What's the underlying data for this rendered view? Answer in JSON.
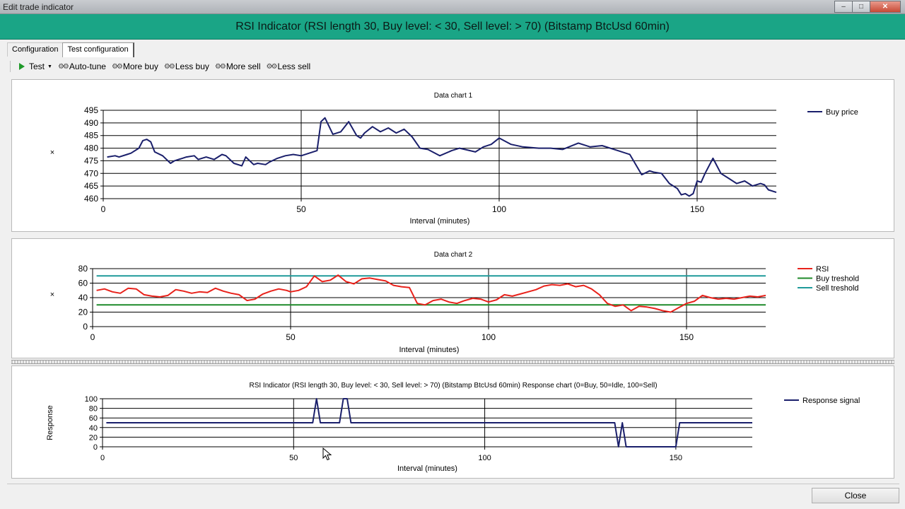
{
  "window": {
    "title": "Edit trade indicator",
    "minimize": "0",
    "maximize": "1",
    "close": "r"
  },
  "header": {
    "title": "RSI Indicator (RSI length 30, Buy level: < 30, Sell level: > 70) (Bitstamp BtcUsd 60min)"
  },
  "tabs": [
    {
      "label": "Configuration"
    },
    {
      "label": "Test configuration"
    }
  ],
  "toolbar": {
    "test": "Test",
    "auto_tune": "Auto-tune",
    "more_buy": "More buy",
    "less_buy": "Less buy",
    "more_sell": "More sell",
    "less_sell": "Less sell",
    "gear_glyph": "⚙⚙"
  },
  "footer": {
    "close": "Close"
  },
  "colors": {
    "buy_price": "#1a1f6b",
    "rsi": "#e8221b",
    "buy_treshold": "#1f8a2a",
    "sell_treshold": "#1f9a9a",
    "response": "#1a1f6b",
    "header_bg": "#1aa586"
  },
  "chart_data": [
    {
      "type": "line",
      "title": "Data chart 1",
      "xlabel": "Interval (minutes)",
      "ylabel": "×",
      "xlim": [
        0,
        170
      ],
      "ylim": [
        460,
        495
      ],
      "xticks": [
        0,
        50,
        100,
        150
      ],
      "yticks": [
        460,
        465,
        470,
        475,
        480,
        485,
        490,
        495
      ],
      "grid": true,
      "legend": "top-right",
      "series": [
        {
          "name": "Buy price",
          "color": "#1a1f6b",
          "x": [
            1,
            3,
            4,
            6,
            7,
            9,
            10,
            11,
            12,
            13,
            15,
            17,
            18,
            20,
            21,
            23,
            24,
            26,
            28,
            30,
            31,
            33,
            35,
            36,
            38,
            39,
            41,
            42,
            44,
            46,
            48,
            50,
            52,
            54,
            55,
            56,
            58,
            60,
            62,
            64,
            65,
            66,
            68,
            70,
            72,
            74,
            76,
            78,
            80,
            82,
            85,
            88,
            90,
            94,
            96,
            98,
            100,
            103,
            106,
            110,
            113,
            116,
            120,
            123,
            126,
            130,
            133,
            136,
            138,
            139,
            141,
            143,
            145,
            146,
            147,
            148,
            149,
            150,
            151,
            152,
            154,
            155,
            156,
            158,
            160,
            162,
            164,
            166,
            167,
            168,
            170
          ],
          "y": [
            476.5,
            477,
            476.5,
            477.5,
            478,
            480,
            483,
            483.5,
            482.5,
            478.5,
            477,
            474,
            475,
            476,
            476.5,
            477,
            475.5,
            476.5,
            475.5,
            477.5,
            477,
            474,
            473,
            476.5,
            473.5,
            474,
            473.5,
            474.5,
            476,
            477,
            477.5,
            477,
            478,
            479,
            490.5,
            492,
            485.5,
            486.5,
            490.5,
            485,
            484,
            486,
            488.5,
            486.5,
            488,
            486,
            487.5,
            484.5,
            480,
            479.5,
            477,
            479,
            480,
            478.5,
            480.5,
            481.5,
            484,
            481.5,
            480.5,
            480,
            480,
            479.5,
            482,
            480.5,
            481,
            479,
            477.5,
            469.5,
            471,
            470.5,
            470,
            466,
            464,
            461.5,
            462,
            461,
            462,
            467,
            466.5,
            470,
            476,
            473,
            470,
            468,
            466,
            467,
            465,
            466,
            465.5,
            463.5,
            462.5
          ]
        }
      ]
    },
    {
      "type": "line",
      "title": "Data chart 2",
      "xlabel": "Interval (minutes)",
      "ylabel": "×",
      "xlim": [
        0,
        170
      ],
      "ylim": [
        0,
        80
      ],
      "xticks": [
        0,
        50,
        100,
        150
      ],
      "yticks": [
        0,
        20,
        40,
        60,
        80
      ],
      "grid": true,
      "legend": "top-right",
      "series": [
        {
          "name": "RSI",
          "color": "#e8221b",
          "x": [
            1,
            3,
            5,
            7,
            9,
            11,
            13,
            15,
            17,
            19,
            21,
            23,
            25,
            27,
            29,
            31,
            33,
            35,
            37,
            39,
            41,
            43,
            45,
            47,
            49,
            50,
            52,
            54,
            56,
            58,
            60,
            62,
            64,
            66,
            68,
            70,
            72,
            74,
            76,
            78,
            80,
            82,
            84,
            86,
            88,
            90,
            92,
            94,
            96,
            98,
            100,
            102,
            104,
            106,
            108,
            110,
            112,
            114,
            116,
            118,
            120,
            122,
            124,
            126,
            128,
            130,
            132,
            134,
            136,
            138,
            140,
            142,
            144,
            146,
            148,
            150,
            152,
            154,
            156,
            158,
            160,
            162,
            164,
            166,
            168,
            170
          ],
          "y": [
            50,
            52,
            48,
            46,
            53,
            52,
            44,
            42,
            41,
            43,
            51,
            49,
            46,
            48,
            47,
            53,
            49,
            46,
            44,
            36,
            38,
            45,
            49,
            52,
            50,
            48,
            50,
            55,
            70,
            62,
            64,
            71,
            62,
            59,
            66,
            67,
            65,
            63,
            57,
            55,
            54,
            32,
            30,
            36,
            38,
            34,
            32,
            36,
            39,
            38,
            34,
            37,
            44,
            42,
            45,
            48,
            51,
            56,
            58,
            57,
            59,
            55,
            57,
            52,
            44,
            32,
            28,
            30,
            22,
            28,
            27,
            25,
            22,
            20,
            26,
            32,
            35,
            43,
            40,
            38,
            39,
            38,
            40,
            42,
            41,
            43
          ]
        },
        {
          "name": "Buy treshold",
          "color": "#1f8a2a",
          "x": [
            1,
            170
          ],
          "y": [
            30,
            30
          ]
        },
        {
          "name": "Sell treshold",
          "color": "#1f9a9a",
          "x": [
            1,
            170
          ],
          "y": [
            70,
            70
          ]
        }
      ]
    },
    {
      "type": "line",
      "title": "RSI Indicator (RSI length 30, Buy level: < 30, Sell level: > 70) (Bitstamp BtcUsd 60min) Response chart (0=Buy, 50=Idle, 100=Sell)",
      "xlabel": "Interval (minutes)",
      "ylabel": "Response",
      "xlim": [
        0,
        170
      ],
      "ylim": [
        0,
        100
      ],
      "xticks": [
        0,
        50,
        100,
        150
      ],
      "yticks": [
        0,
        20,
        40,
        60,
        80,
        100
      ],
      "grid": true,
      "legend": "top-right",
      "series": [
        {
          "name": "Response signal",
          "color": "#1a1f6b",
          "x": [
            1,
            55,
            56,
            57,
            62,
            63,
            64,
            65,
            134,
            135,
            136,
            137,
            150,
            151,
            170
          ],
          "y": [
            50,
            50,
            100,
            50,
            50,
            100,
            100,
            50,
            50,
            0,
            50,
            0,
            0,
            50,
            50
          ]
        }
      ]
    }
  ]
}
